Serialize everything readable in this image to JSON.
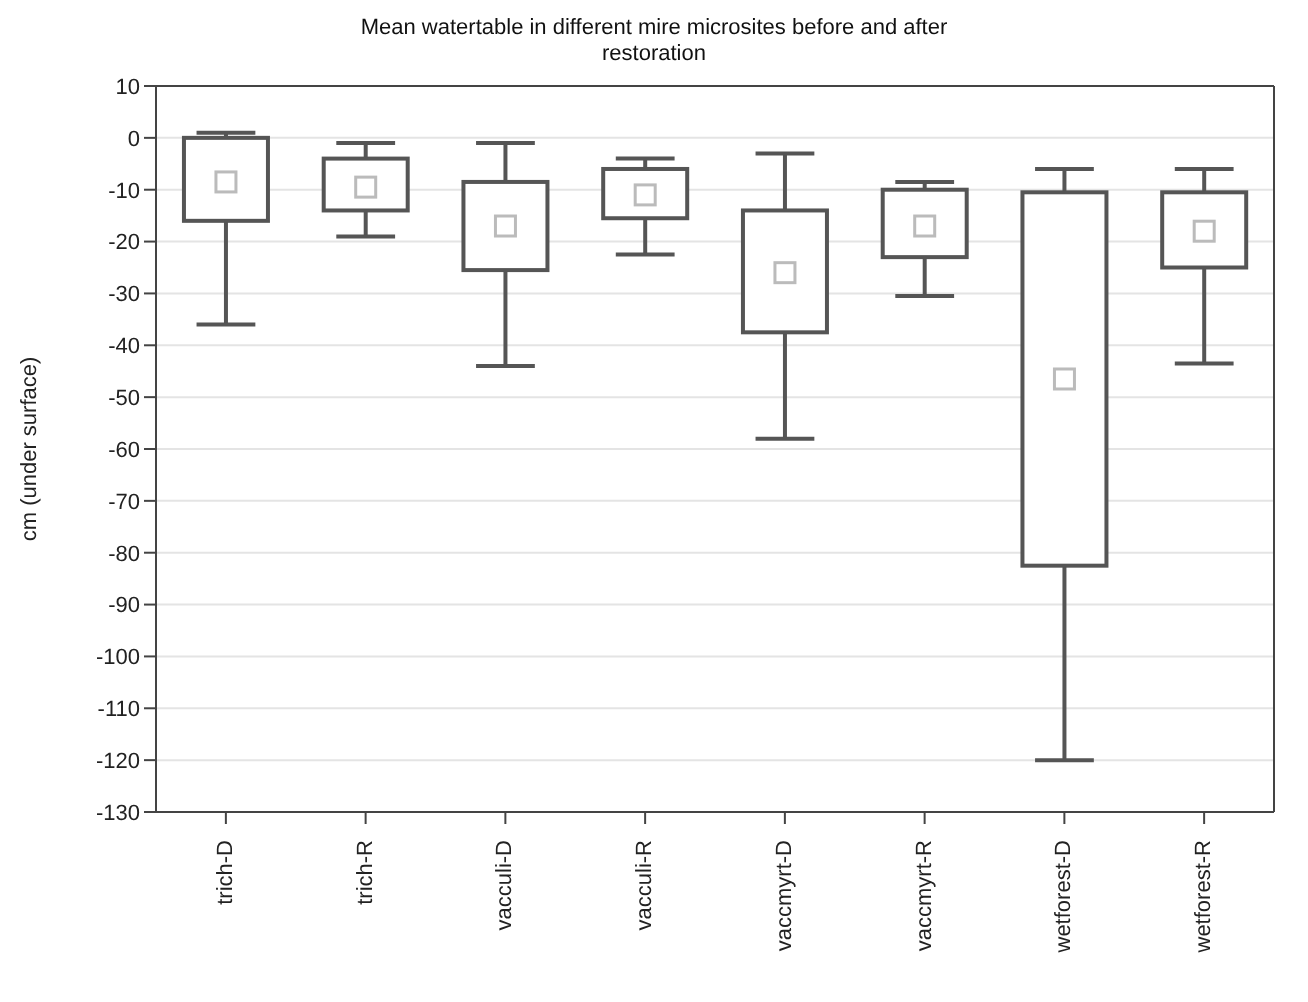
{
  "chart_data": {
    "type": "box",
    "title": "Mean watertable in different mire microsites before and after restoration",
    "ylabel": "cm (under surface)",
    "categories": [
      "trich-D",
      "trich-R",
      "vacculi-D",
      "vacculi-R",
      "vaccmyrt-D",
      "vaccmyrt-R",
      "wetforest-D",
      "wetforest-R"
    ],
    "boxes": [
      {
        "low": -36,
        "q1": -16,
        "median": -8.5,
        "q3": 0,
        "high": 1
      },
      {
        "low": -19,
        "q1": -14,
        "median": -9.5,
        "q3": -4,
        "high": -1
      },
      {
        "low": -44,
        "q1": -25.5,
        "median": -17,
        "q3": -8.5,
        "high": -1
      },
      {
        "low": -22.5,
        "q1": -15.5,
        "median": -11,
        "q3": -6,
        "high": -4
      },
      {
        "low": -58,
        "q1": -37.5,
        "median": -26,
        "q3": -14,
        "high": -3
      },
      {
        "low": -30.5,
        "q1": -23,
        "median": -17,
        "q3": -10,
        "high": -8.5
      },
      {
        "low": -120,
        "q1": -82.5,
        "median": -46.5,
        "q3": -10.5,
        "high": -6
      },
      {
        "low": -43.5,
        "q1": -25,
        "median": -18,
        "q3": -10.5,
        "high": -6
      }
    ],
    "ylim": [
      -130,
      10
    ],
    "yticks": [
      -130,
      -120,
      -110,
      -100,
      -90,
      -80,
      -70,
      -60,
      -50,
      -40,
      -30,
      -20,
      -10,
      0,
      10
    ],
    "grid": "y",
    "marker": "square"
  }
}
